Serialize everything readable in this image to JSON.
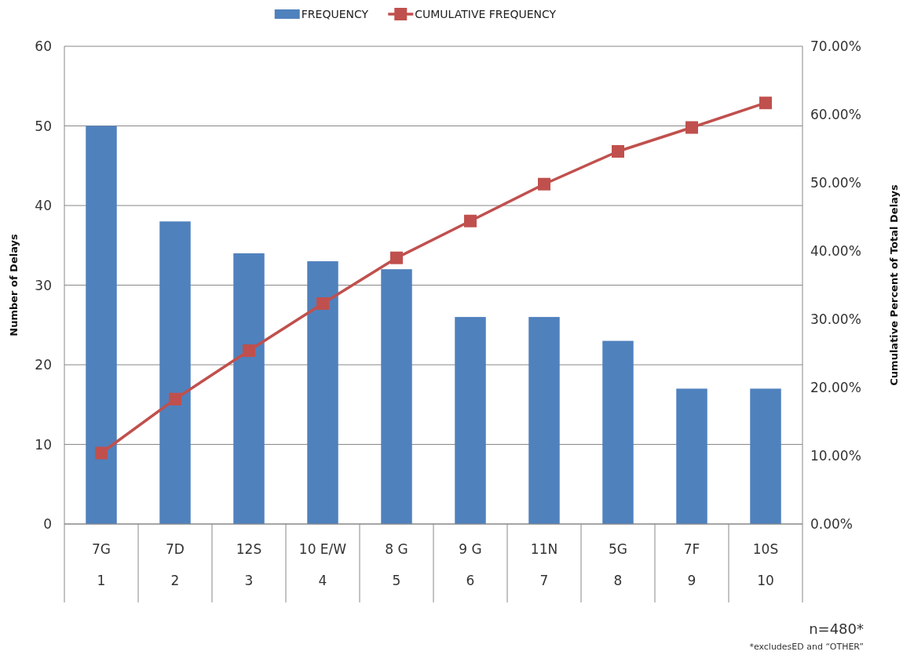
{
  "chart_data": {
    "type": "bar",
    "ylabel": "Number of Delays",
    "y2label": "Cumulative Percent of Total Delays",
    "categories": [
      "7G\n1",
      "7D\n2",
      "12S\n3",
      "10 E/W\n4",
      "8 G\n5",
      "9 G\n6",
      "11N\n7",
      "5G\n8",
      "7F\n9",
      "10S\n10"
    ],
    "series": [
      {
        "name": "FREQUENCY",
        "color": "#4f81bd",
        "values": [
          50,
          38,
          34,
          33,
          32,
          26,
          26,
          23,
          17,
          17
        ]
      },
      {
        "name": "CUMULATIVE FREQUENCY",
        "type": "line",
        "axis": "y2",
        "color": "#c0504d",
        "marker": "square",
        "line_style": "solid",
        "values": [
          10.4,
          18.3,
          25.4,
          32.3,
          39.0,
          44.4,
          49.8,
          54.6,
          58.1,
          61.7
        ]
      }
    ],
    "ylim": [
      0,
      60
    ],
    "yticks": [
      0,
      10,
      20,
      30,
      40,
      50,
      60
    ],
    "y2lim": [
      0,
      70
    ],
    "y2ticks": [
      {
        "value": 0,
        "label": "0.00%"
      },
      {
        "value": 10,
        "label": "10.00%"
      },
      {
        "value": 20,
        "label": "20.00%"
      },
      {
        "value": 30,
        "label": "30.00%"
      },
      {
        "value": 40,
        "label": "40.00%"
      },
      {
        "value": 50,
        "label": "50.00%"
      },
      {
        "value": 60,
        "label": "60.00%"
      },
      {
        "value": 70,
        "label": "70.00%"
      }
    ],
    "grid": "y",
    "legend": "top",
    "annotations": [
      "n=480*",
      "*excludesED and “OTHER”"
    ]
  }
}
